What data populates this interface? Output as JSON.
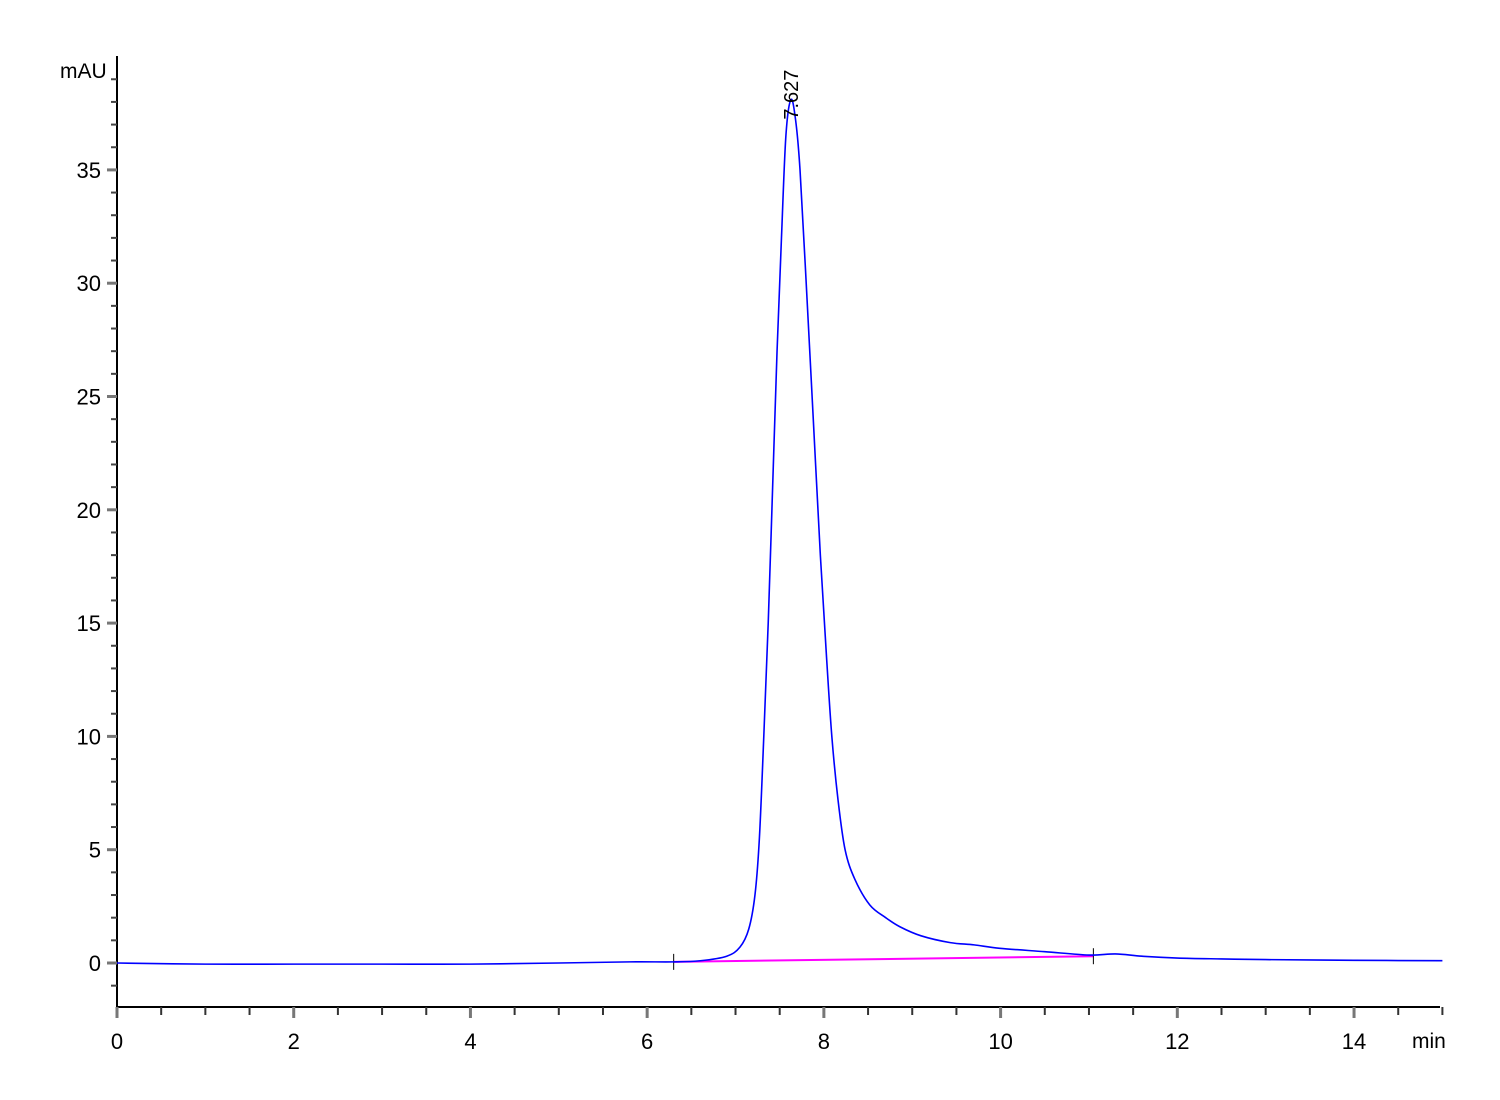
{
  "chart_data": {
    "type": "line",
    "title": "",
    "xlabel": "min",
    "ylabel": "mAU",
    "xlim": [
      0,
      15
    ],
    "ylim": [
      -1.94,
      40
    ],
    "x_ticks": [
      0,
      2,
      4,
      6,
      8,
      10,
      12,
      14
    ],
    "x_tick_labels": [
      "0",
      "2",
      "4",
      "6",
      "8",
      "10",
      "12",
      "14"
    ],
    "x_minor_step": 0.5,
    "y_ticks": [
      0,
      5,
      10,
      15,
      20,
      25,
      30,
      35
    ],
    "y_tick_labels": [
      "0",
      "5",
      "10",
      "15",
      "20",
      "25",
      "30",
      "35"
    ],
    "y_minor_step": 1,
    "grid": false,
    "series": [
      {
        "color": "#0000ff",
        "x": [
          0,
          1,
          2,
          3,
          4,
          5,
          5.8,
          6.3,
          6.6,
          6.9,
          7.05,
          7.15,
          7.22,
          7.27,
          7.32,
          7.37,
          7.42,
          7.47,
          7.52,
          7.57,
          7.627,
          7.68,
          7.73,
          7.8,
          7.88,
          7.96,
          8.03,
          8.09,
          8.16,
          8.24,
          8.35,
          8.52,
          8.7,
          8.86,
          9.1,
          9.43,
          9.7,
          9.99,
          10.5,
          11.0,
          11.3,
          11.6,
          12,
          12.5,
          13,
          14,
          15
        ],
        "y": [
          0,
          -0.05,
          -0.05,
          -0.05,
          -0.05,
          0,
          0.05,
          0.05,
          0.1,
          0.3,
          0.7,
          1.5,
          3.0,
          5.5,
          10,
          15,
          21,
          27,
          32,
          36.5,
          38.1,
          37.2,
          35,
          30,
          24,
          18,
          13.5,
          10,
          7.2,
          5,
          3.7,
          2.56,
          2.0,
          1.6,
          1.2,
          0.9,
          0.8,
          0.65,
          0.5,
          0.35,
          0.4,
          0.3,
          0.22,
          0.18,
          0.15,
          0.12,
          0.1
        ]
      }
    ],
    "baseline": {
      "color": "#ff00ff",
      "x": [
        6.3,
        11.05
      ],
      "y": [
        0.05,
        0.3
      ]
    },
    "peak_markers": [
      6.3,
      11.05
    ],
    "annotations": [
      {
        "text": "7.627",
        "x": 7.627,
        "y": 38.1
      }
    ]
  }
}
